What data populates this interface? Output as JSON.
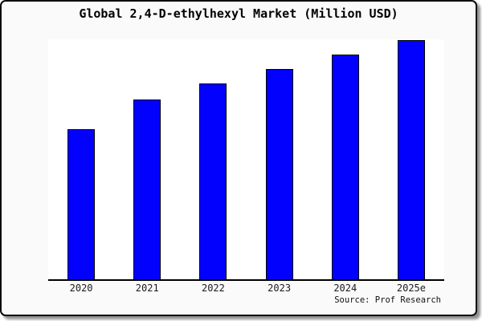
{
  "window": {
    "background_color": "#fafafa",
    "frame_border_color": "#0b0b0b",
    "frame_shadow_color": "#8f8f8f"
  },
  "chart_data": {
    "type": "bar",
    "title": "Global 2,4-D-ethylhexyl Market (Million USD)",
    "categories": [
      "2020",
      "2021",
      "2022",
      "2023",
      "2024",
      "2025e"
    ],
    "values": [
      62.8,
      75.3,
      81.8,
      88.0,
      94.0,
      100.0
    ],
    "values_unit": "relative size (no y-axis tick labels shown; estimated from bar heights, 2025e = 100)",
    "ylim": [
      0,
      100.3
    ],
    "xlabel": "",
    "ylabel": "",
    "gridlines": false,
    "legend": false,
    "y_axis_labels_visible": false,
    "bar_color": "#0101fd",
    "bar_border_color": "#000000",
    "axis_color": "#000000",
    "plot_background": "#ffffff",
    "source_label": "Source: Prof Research"
  }
}
